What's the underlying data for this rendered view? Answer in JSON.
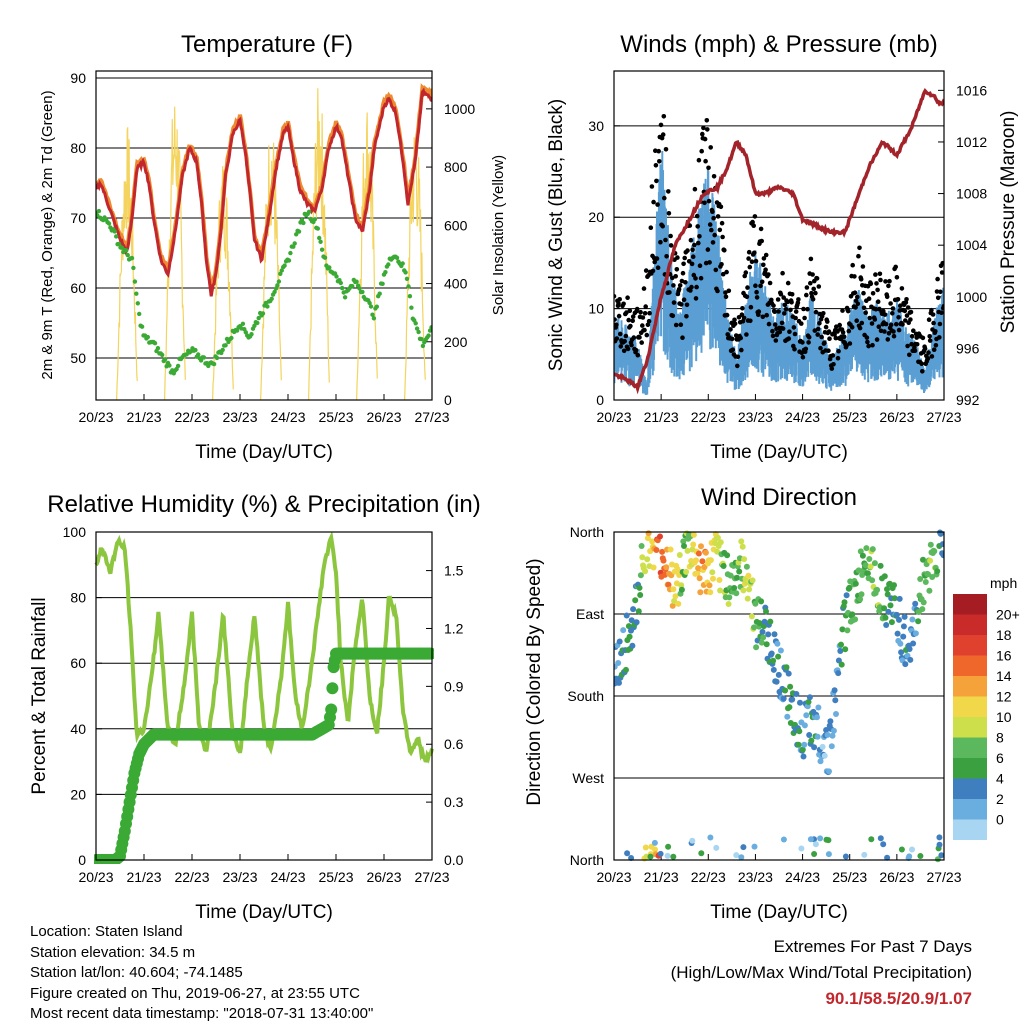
{
  "colors": {
    "temp_2m": "#c1272d",
    "temp_9m": "#ee8a2f",
    "dewpoint": "#3aaa35",
    "solar": "#f4d45e",
    "wind": "#5a9fd4",
    "gust": "#000000",
    "pressure": "#a3232a",
    "rh": "#8cc63f",
    "precip": "#3aaa35",
    "extremes": "#c1272d"
  },
  "time_ticks": [
    "20/23",
    "21/23",
    "22/23",
    "23/23",
    "24/23",
    "25/23",
    "26/23",
    "27/23"
  ],
  "chart_data": [
    {
      "type": "line",
      "title": "Temperature (F)",
      "xlabel": "Time (Day/UTC)",
      "ylabel": "2m & 9m T (Red, Orange) & 2m Td (Green)",
      "y2label": "Solar Insolation (Yellow)",
      "ylim": [
        44,
        91
      ],
      "y2lim": [
        0,
        1130
      ],
      "yticks": [
        50,
        60,
        70,
        80,
        90
      ],
      "y2ticks": [
        0,
        200,
        400,
        600,
        800,
        1000
      ],
      "grid": true,
      "series": [
        {
          "x": [
            0,
            0.1,
            0.2,
            0.35,
            0.5,
            0.65,
            0.75,
            0.85,
            1.0,
            1.1,
            1.2,
            1.35,
            1.5,
            1.65,
            1.8,
            1.95,
            2.1,
            2.2,
            2.3,
            2.4,
            2.5,
            2.6,
            2.7,
            2.85,
            3.0,
            3.1,
            3.2,
            3.3,
            3.45,
            3.6,
            3.75,
            3.9,
            4.0,
            4.1,
            4.25,
            4.4,
            4.55,
            4.7,
            4.85,
            5.0,
            5.1,
            5.25,
            5.4,
            5.55,
            5.7,
            5.8,
            6.0,
            6.1,
            6.25,
            6.4,
            6.5,
            6.65,
            6.8,
            7.0
          ],
          "y": [
            74,
            75,
            73,
            70,
            67,
            65,
            70,
            77,
            78,
            75,
            70,
            64,
            62,
            68,
            76,
            80,
            78,
            72,
            64,
            59,
            62,
            68,
            76,
            82,
            84,
            80,
            74,
            67,
            64,
            70,
            77,
            82,
            83,
            79,
            74,
            72,
            71,
            74,
            80,
            83,
            82,
            76,
            70,
            68,
            74,
            80,
            86,
            87,
            85,
            78,
            72,
            78,
            88,
            87
          ]
        },
        {
          "x": [
            0,
            0.3,
            0.5,
            0.75,
            0.9,
            1.0,
            1.2,
            1.4,
            1.6,
            1.8,
            2.0,
            2.2,
            2.4,
            2.6,
            2.8,
            3.0,
            3.2,
            3.4,
            3.6,
            3.8,
            4.0,
            4.2,
            4.4,
            4.6,
            4.8,
            5.0,
            5.2,
            5.4,
            5.6,
            5.8,
            6.0,
            6.2,
            6.4,
            6.5,
            6.6,
            6.8,
            7.0
          ],
          "y": [
            71,
            69,
            66,
            64,
            56,
            53,
            52,
            50,
            48,
            50,
            51,
            50,
            49,
            51,
            53,
            55,
            53,
            56,
            58,
            61,
            64,
            68,
            71,
            69,
            63,
            62,
            59,
            61,
            59,
            56,
            62,
            65,
            63,
            61,
            56,
            52,
            54
          ]
        },
        {
          "peaks": [
            0.65,
            1.65,
            2.65,
            3.65,
            4.65,
            5.65,
            6.65
          ],
          "peak_values": [
            950,
            1080,
            850,
            980,
            1100,
            1050,
            980
          ]
        }
      ]
    },
    {
      "type": "scatter",
      "title": "Winds (mph) & Pressure (mb)",
      "xlabel": "Time (Day/UTC)",
      "ylabel": "Sonic Wind & Gust (Blue, Black)",
      "y2label": "Station Pressure (Maroon)",
      "ylim": [
        0,
        36
      ],
      "y2lim": [
        992,
        1017.5
      ],
      "yticks": [
        0,
        10,
        20,
        30
      ],
      "y2ticks": [
        992,
        996,
        1000,
        1004,
        1008,
        1012,
        1016
      ],
      "grid": true,
      "series": [
        {
          "x": [
            0,
            0.3,
            0.5,
            0.7,
            0.85,
            1.0,
            1.2,
            1.4,
            1.6,
            1.8,
            2.0,
            2.2,
            2.4,
            2.6,
            2.8,
            3.0,
            3.2,
            3.4,
            3.6,
            3.8,
            4.0,
            4.2,
            4.4,
            4.6,
            4.8,
            5.0,
            5.2,
            5.4,
            5.6,
            5.8,
            6.0,
            6.2,
            6.4,
            6.6,
            6.8,
            7.0
          ],
          "y": [
            6,
            5,
            4,
            1,
            10,
            18,
            10,
            6,
            10,
            14,
            16,
            12,
            6,
            3,
            7,
            11,
            8,
            6,
            7,
            6,
            4,
            8,
            5,
            3,
            4,
            6,
            8,
            6,
            7,
            6,
            7,
            5,
            4,
            2,
            6,
            8
          ]
        },
        {
          "x": [
            0,
            0.3,
            0.5,
            0.7,
            0.85,
            1.0,
            1.2,
            1.4,
            1.6,
            1.8,
            2.0,
            2.2,
            2.4,
            2.6,
            2.8,
            3.0,
            3.2,
            3.4,
            3.6,
            3.8,
            4.0,
            4.2,
            4.4,
            4.6,
            4.8,
            5.0,
            5.2,
            5.4,
            5.6,
            5.8,
            6.0,
            6.2,
            6.4,
            6.6,
            6.8,
            7.0
          ],
          "y": [
            10,
            9,
            8,
            12,
            22,
            28,
            17,
            11,
            16,
            22,
            26,
            20,
            11,
            6,
            12,
            18,
            14,
            10,
            12,
            10,
            8,
            13,
            9,
            6,
            7,
            11,
            14,
            10,
            12,
            10,
            12,
            9,
            7,
            5,
            10,
            14
          ]
        },
        {
          "x": [
            0,
            0.3,
            0.5,
            0.7,
            1.0,
            1.3,
            1.6,
            1.9,
            2.2,
            2.4,
            2.6,
            2.8,
            3.0,
            3.2,
            3.5,
            3.8,
            4.0,
            4.3,
            4.6,
            4.9,
            5.1,
            5.4,
            5.7,
            6.0,
            6.3,
            6.6,
            6.8,
            6.9,
            7.0
          ],
          "y": [
            994,
            993.5,
            993,
            995,
            1000,
            1004,
            1006,
            1008,
            1008.5,
            1010,
            1012,
            1011,
            1008,
            1008,
            1008.5,
            1008,
            1006,
            1005.5,
            1005,
            1005,
            1007,
            1010,
            1012,
            1011,
            1013,
            1016,
            1015.5,
            1015,
            1015
          ]
        }
      ]
    },
    {
      "type": "line",
      "title": "Relative Humidity (%) & Precipitation (in)",
      "xlabel": "Time (Day/UTC)",
      "ylabel": "Percent & Total Rainfall",
      "ylim": [
        0,
        100
      ],
      "y2lim": [
        0,
        1.7
      ],
      "yticks": [
        0,
        20,
        40,
        60,
        80,
        100
      ],
      "y2ticks": [
        "0.0",
        "0.3",
        "0.6",
        "0.9",
        "1.2",
        "1.5"
      ],
      "grid": true,
      "series": [
        {
          "x": [
            0,
            0.1,
            0.2,
            0.3,
            0.45,
            0.6,
            0.7,
            0.85,
            1.0,
            1.15,
            1.3,
            1.5,
            1.65,
            1.85,
            2.0,
            2.15,
            2.3,
            2.5,
            2.65,
            2.85,
            3.0,
            3.15,
            3.3,
            3.5,
            3.65,
            3.85,
            4.0,
            4.15,
            4.3,
            4.45,
            4.6,
            4.75,
            4.9,
            5.0,
            5.1,
            5.25,
            5.4,
            5.55,
            5.7,
            5.85,
            6.0,
            6.1,
            6.25,
            6.4,
            6.55,
            6.7,
            6.85,
            7.0
          ],
          "y": [
            90,
            95,
            92,
            88,
            97,
            95,
            75,
            38,
            40,
            55,
            75,
            40,
            35,
            55,
            75,
            40,
            33,
            55,
            75,
            38,
            32,
            55,
            75,
            40,
            34,
            55,
            78,
            50,
            40,
            55,
            72,
            90,
            98,
            88,
            60,
            42,
            65,
            80,
            50,
            38,
            60,
            80,
            75,
            45,
            33,
            37,
            30,
            33
          ]
        },
        {
          "x": [
            0,
            0.1,
            0.2,
            0.3,
            0.4,
            0.5,
            0.6,
            0.7,
            0.8,
            0.9,
            1.0,
            1.2,
            1.5,
            2.0,
            2.5,
            3.0,
            3.5,
            4.0,
            4.5,
            4.85,
            4.9,
            4.95,
            5.0,
            5.5,
            6.0,
            6.5,
            7.0
          ],
          "y": [
            0,
            0,
            0,
            0,
            0,
            0.02,
            0.15,
            0.3,
            0.45,
            0.55,
            0.6,
            0.65,
            0.65,
            0.65,
            0.65,
            0.65,
            0.65,
            0.65,
            0.65,
            0.7,
            0.78,
            1.0,
            1.07,
            1.07,
            1.07,
            1.07,
            1.07
          ]
        }
      ]
    },
    {
      "type": "scatter",
      "title": "Wind Direction",
      "xlabel": "Time (Day/UTC)",
      "ylabel": "Direction (Colored By Speed)",
      "yticks": [
        "North",
        "West",
        "South",
        "East",
        "North"
      ],
      "ylim": [
        0,
        360
      ],
      "colorbar_label": "mph",
      "colorbar_levels": [
        "20+",
        "18",
        "16",
        "14",
        "12",
        "10",
        "8",
        "6",
        "4",
        "2",
        "0"
      ],
      "colorbar_colors": [
        "#a51d22",
        "#c92a2a",
        "#e0412f",
        "#f0672c",
        "#f5a23a",
        "#f0d84a",
        "#cde04c",
        "#5cb85c",
        "#3aa040",
        "#3f7fbf",
        "#6aaee0",
        "#a8d5f2"
      ],
      "series": [
        {
          "x": [
            0.05,
            0.2,
            0.35,
            0.5,
            0.6,
            0.8,
            1.0,
            1.15,
            1.3,
            1.5,
            1.65,
            1.8,
            2.0,
            2.15,
            2.3,
            2.5,
            2.7,
            2.85,
            3.0,
            3.2,
            3.4,
            3.6,
            3.75,
            3.9,
            4.05,
            4.2,
            4.4,
            4.55,
            4.7,
            4.85,
            5.0,
            5.2,
            5.35,
            5.5,
            5.7,
            5.9,
            6.05,
            6.2,
            6.35,
            6.5,
            6.7,
            6.85,
            6.95
          ],
          "dir": [
            210,
            230,
            250,
            280,
            340,
            350,
            335,
            320,
            300,
            330,
            340,
            320,
            310,
            330,
            320,
            300,
            330,
            310,
            260,
            250,
            230,
            190,
            180,
            150,
            140,
            160,
            130,
            120,
            170,
            250,
            280,
            300,
            340,
            320,
            290,
            280,
            260,
            230,
            240,
            300,
            320,
            340,
            350
          ],
          "speed": [
            4,
            5,
            6,
            7,
            10,
            14,
            18,
            16,
            12,
            8,
            12,
            16,
            14,
            12,
            10,
            8,
            10,
            12,
            8,
            6,
            6,
            4,
            6,
            5,
            4,
            6,
            3,
            4,
            4,
            6,
            8,
            8,
            8,
            10,
            8,
            6,
            4,
            6,
            4,
            8,
            10,
            8,
            6
          ]
        }
      ]
    }
  ],
  "footer": {
    "location": "Location: Staten Island",
    "elevation": "Station elevation: 34.5 m",
    "latlon": "Station lat/lon: 40.604; -74.1485",
    "created": "Figure created on Thu, 2019-06-27, at 23:55 UTC",
    "recent": "Most recent data timestamp: \"2018-07-31 13:40:00\""
  },
  "extremes": {
    "title": "Extremes For Past 7 Days",
    "subtitle": "(High/Low/Max Wind/Total Precipitation)",
    "values": "90.1/58.5/20.9/1.07"
  }
}
